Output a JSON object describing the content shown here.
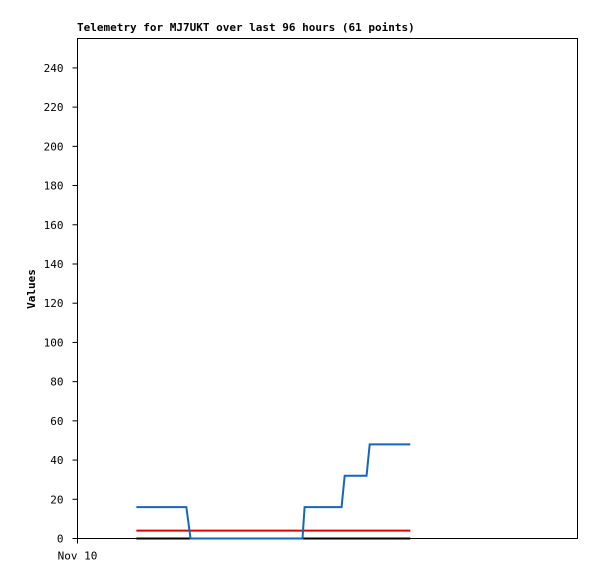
{
  "chart_data": {
    "type": "line",
    "title": "Telemetry for MJ7UKT over last 96 hours (61 points)",
    "y_label": "Values",
    "x": [
      11.3,
      20.9,
      21.7,
      43.2,
      43.6,
      50.7,
      51.3,
      55.5,
      56.1,
      63.9
    ],
    "xlim": [
      0,
      96
    ],
    "xticks": [
      {
        "value": 0,
        "label": "Nov 10"
      }
    ],
    "ylim": [
      0,
      255
    ],
    "yticks": [
      0,
      20,
      40,
      60,
      80,
      100,
      120,
      140,
      160,
      180,
      200,
      220,
      240
    ],
    "grid": false,
    "series": [
      {
        "color": "#1565c0",
        "values": [
          16,
          16,
          0,
          0,
          16,
          16,
          32,
          32,
          48,
          48
        ]
      },
      {
        "color": "#e00000",
        "values": [
          4,
          4,
          4,
          4,
          4,
          4,
          4,
          4,
          4,
          4
        ]
      },
      {
        "color": "#000000",
        "values": [
          0,
          0,
          0,
          0,
          0,
          0,
          0,
          0,
          0,
          0
        ]
      }
    ]
  }
}
